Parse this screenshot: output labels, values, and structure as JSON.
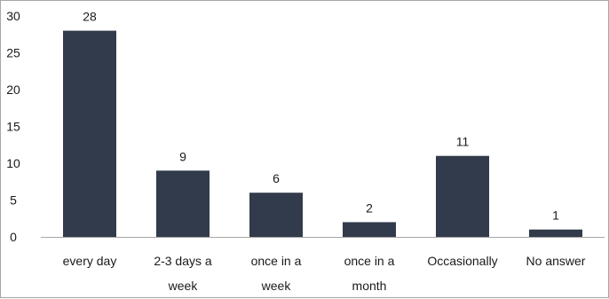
{
  "chart_data": {
    "type": "bar",
    "title": "",
    "xlabel": "",
    "ylabel": "",
    "categories": [
      [
        "every day"
      ],
      [
        "2-3 days a",
        "week"
      ],
      [
        "once in a",
        "week"
      ],
      [
        "once in a",
        "month"
      ],
      [
        "Occasionally"
      ],
      [
        "No answer"
      ]
    ],
    "values": [
      28,
      9,
      6,
      2,
      11,
      1
    ],
    "ylim": [
      0,
      30
    ],
    "yticks": [
      0,
      5,
      10,
      15,
      20,
      25,
      30
    ],
    "grid": false,
    "legend": "none",
    "show_data_labels": true,
    "colors": {
      "bar": "#323b4b",
      "axis": "#a6a6a6",
      "text": "#1a1a1a"
    }
  }
}
